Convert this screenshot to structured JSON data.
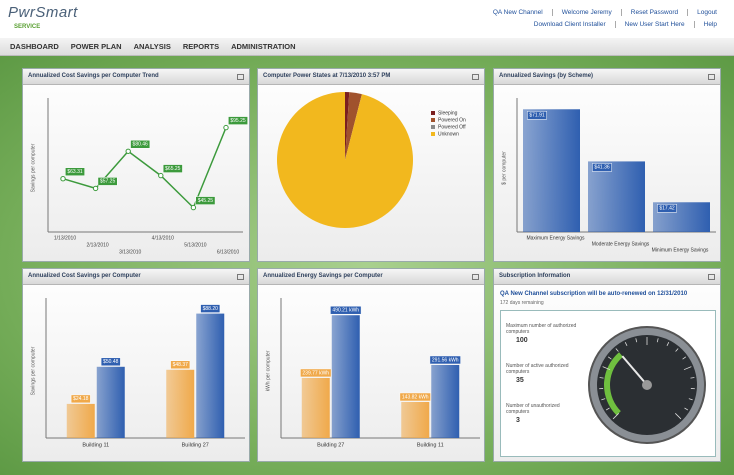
{
  "header": {
    "logo": "PwrSmart",
    "logo_sub": "SERVICE",
    "links": [
      "QA New Channel",
      "Welcome Jeremy",
      "Reset Password",
      "Logout"
    ],
    "links2": [
      "Download Client Installer",
      "New User Start Here",
      "Help"
    ]
  },
  "nav": [
    "DASHBOARD",
    "POWER PLAN",
    "ANALYSIS",
    "REPORTS",
    "ADMINISTRATION"
  ],
  "panels": [
    {
      "title": "Annualized Cost Savings per Computer Trend",
      "chart_data": {
        "type": "line",
        "y_label": "Savings per computer",
        "categories": [
          "1/13/2010",
          "2/13/2010",
          "3/13/2010",
          "4/13/2010",
          "5/13/2010",
          "6/13/2010"
        ],
        "values": [
          63.31,
          57.25,
          80.46,
          65.25,
          45.25,
          95.25
        ],
        "value_labels": [
          "$63.31",
          "$57.25",
          "$80.46",
          "$65.25",
          "$45.25",
          "$95.25"
        ],
        "color": "#3c9a3c",
        "ylim": [
          30,
          110
        ]
      }
    },
    {
      "title": "Computer Power States at 7/13/2010 3:57 PM",
      "chart_data": {
        "type": "pie",
        "categories": [
          "Sleeping",
          "Powered On",
          "Powered Off",
          "Unknown"
        ],
        "values": [
          1,
          3,
          0,
          96
        ],
        "colors": [
          "#7a1f1f",
          "#a0522d",
          "#8a8a8a",
          "#f2b81e"
        ]
      }
    },
    {
      "title": "Annualized Savings (by Scheme)",
      "chart_data": {
        "type": "bar",
        "y_label": "$ per computer",
        "categories": [
          "Maximum Energy Savings",
          "Moderate Energy Savings",
          "Minimum Energy Savings"
        ],
        "values": [
          71.91,
          41.36,
          17.42
        ],
        "value_labels": [
          "$71.91",
          "$41.36",
          "$17.42"
        ],
        "color": "#2f5fb0",
        "ylim": [
          0,
          75
        ]
      }
    },
    {
      "title": "Annualized Cost Savings per Computer",
      "chart_data": {
        "type": "bar",
        "y_label": "Savings per computer",
        "categories": [
          "Building 11",
          "Building 27"
        ],
        "series": [
          {
            "color": "#f0a94a",
            "values": [
              24.18,
              48.37
            ],
            "value_labels": [
              "$24.18",
              "$48.37"
            ]
          },
          {
            "color": "#2f5fb0",
            "values": [
              50.48,
              88.2
            ],
            "value_labels": [
              "$50.48",
              "$88.20"
            ]
          }
        ],
        "ylim": [
          0,
          95
        ]
      }
    },
    {
      "title": "Annualized Energy Savings per Computer",
      "chart_data": {
        "type": "bar",
        "y_label": "kWh per computer",
        "categories": [
          "Building 27",
          "Building 11"
        ],
        "series": [
          {
            "color": "#f0a94a",
            "values": [
              239.77,
              143.82
            ],
            "value_labels": [
              "239.77 kWh",
              "143.82 kWh"
            ]
          },
          {
            "color": "#2f5fb0",
            "values": [
              490.21,
              291.56
            ],
            "value_labels": [
              "490.21 kWh",
              "291.56 kWh"
            ]
          }
        ],
        "ylim": [
          0,
          535
        ]
      }
    },
    {
      "title": "Subscription Information"
    }
  ],
  "subscription": {
    "notice": "QA New Channel subscription will be auto-renewed on 12/31/2010",
    "remaining": "172 days remaining",
    "fields": [
      {
        "label": "Maximum number of authorized computers",
        "value": 100
      },
      {
        "label": "Number of active authorized computers",
        "value": 35
      },
      {
        "label": "Number of unauthorized computers",
        "value": 3
      }
    ]
  }
}
